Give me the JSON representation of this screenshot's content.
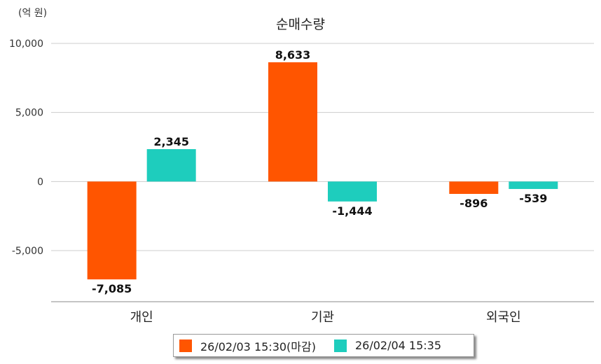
{
  "chart_data": {
    "type": "bar",
    "title": "순매수량",
    "unit": "(억 원)",
    "categories": [
      "개인",
      "기관",
      "외국인"
    ],
    "series": [
      {
        "name": "26/02/03 15:30(마감)",
        "color": "#ff5500",
        "values": [
          -7085,
          8633,
          -896
        ]
      },
      {
        "name": "26/02/04 15:35",
        "color": "#1ecdbd",
        "values": [
          2345,
          -1444,
          -539
        ]
      }
    ],
    "yticks": [
      10000,
      5000,
      0,
      -5000
    ],
    "ytick_labels": [
      "10,000",
      "5,000",
      "0",
      "-5,000"
    ],
    "value_labels": [
      [
        "-7,085",
        "8,633",
        "-896"
      ],
      [
        "2,345",
        "-1,444",
        "-539"
      ]
    ],
    "ylim": [
      -8700,
      10000
    ],
    "grid": true,
    "legend_position": "bottom"
  }
}
